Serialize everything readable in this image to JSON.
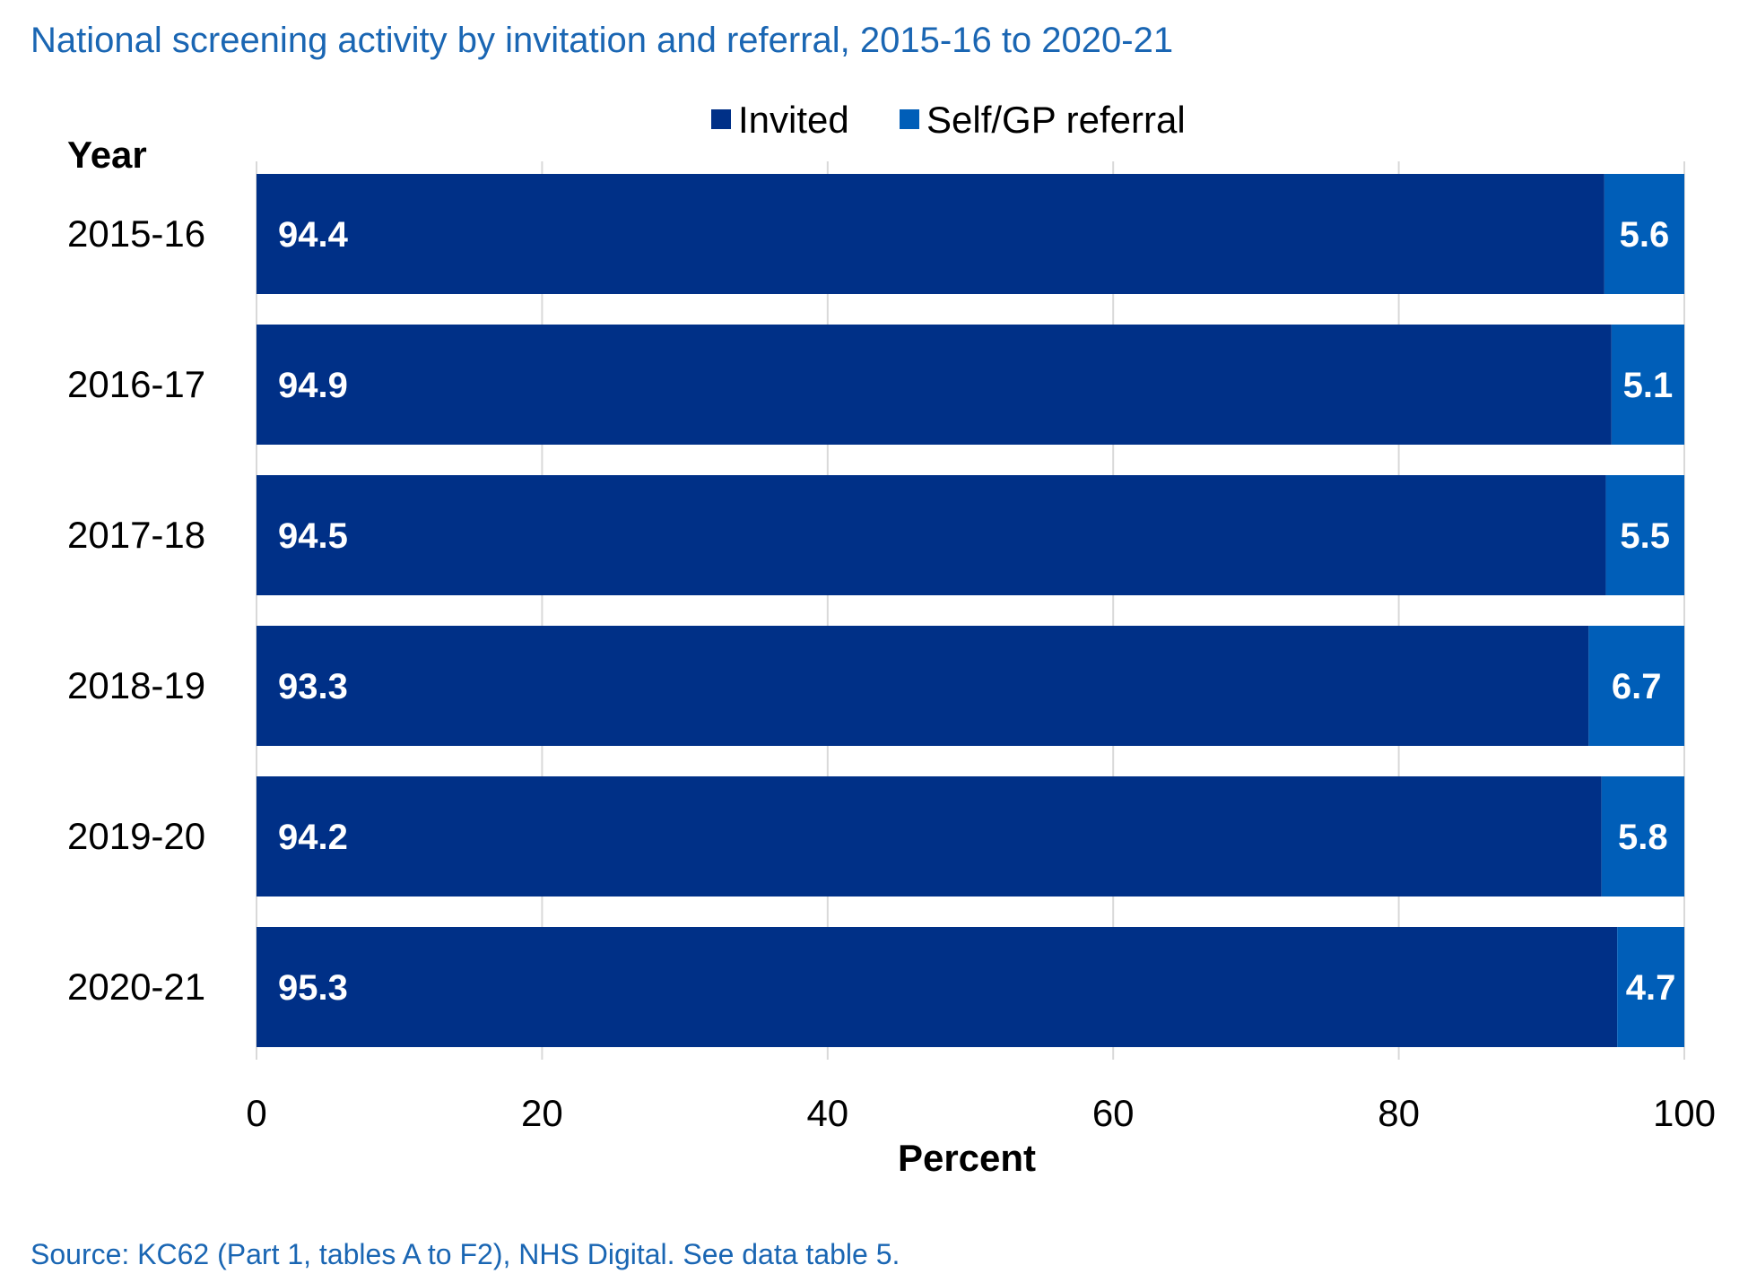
{
  "chart_data": {
    "type": "bar",
    "orientation": "horizontal",
    "stacked": true,
    "title": "National screening activity by invitation and referral, 2015-16 to 2020-21",
    "categories_title": "Year",
    "categories": [
      "2015-16",
      "2016-17",
      "2017-18",
      "2018-19",
      "2019-20",
      "2020-21"
    ],
    "series": [
      {
        "name": "Invited",
        "color": "#003087",
        "values": [
          94.4,
          94.9,
          94.5,
          93.3,
          94.2,
          95.3
        ]
      },
      {
        "name": "Self/GP referral",
        "color": "#005eb8",
        "values": [
          5.6,
          5.1,
          5.5,
          6.7,
          5.8,
          4.7
        ]
      }
    ],
    "xlabel": "Percent",
    "xlim": [
      0,
      100
    ],
    "xticks": [
      0,
      20,
      40,
      60,
      80,
      100
    ],
    "grid": true,
    "legend": "top-center",
    "data_labels": true,
    "source": "Source: KC62 (Part 1, tables A to F2), NHS Digital. See data table 5."
  }
}
